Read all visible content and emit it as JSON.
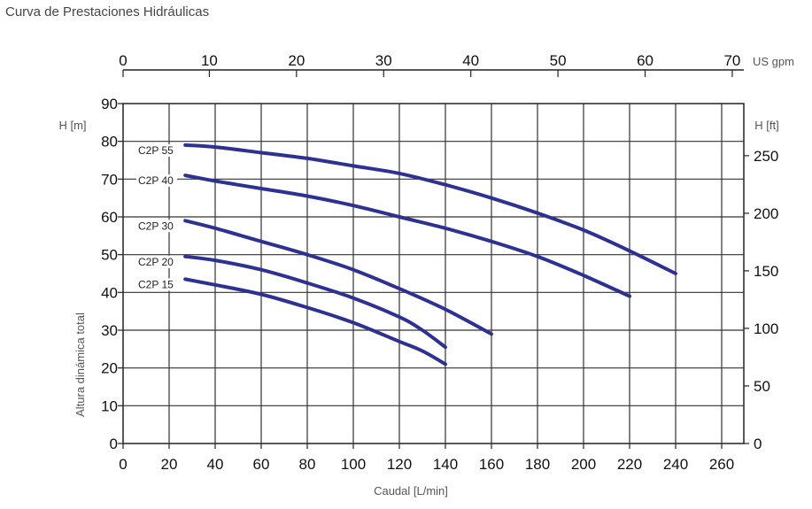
{
  "page_title": "Curva de Prestaciones Hidráulicas",
  "chart_data": {
    "type": "line",
    "xlabel": "Caudal [L/min]",
    "ylabel": "Altura dinámica total",
    "left_axis_unit": "H [m]",
    "right_axis_unit": "H [ft]",
    "top_axis_unit": "US gpm",
    "xlim": [
      0,
      265
    ],
    "ylim": [
      0,
      90
    ],
    "x_ticks": [
      0,
      20,
      40,
      60,
      80,
      100,
      120,
      140,
      160,
      180,
      200,
      220,
      240,
      260
    ],
    "y_ticks": [
      0,
      10,
      20,
      30,
      40,
      50,
      60,
      70,
      80,
      90
    ],
    "top_ticks": [
      0,
      10,
      20,
      30,
      40,
      50,
      60,
      70
    ],
    "right_ticks": [
      0,
      50,
      100,
      150,
      200,
      250
    ],
    "grid": true,
    "series": [
      {
        "name": "C2P 55",
        "x": [
          27,
          40,
          60,
          80,
          100,
          120,
          140,
          160,
          180,
          200,
          220,
          240
        ],
        "y": [
          79,
          78.5,
          77,
          75.5,
          73.5,
          71.5,
          68.5,
          65,
          61,
          56.5,
          51,
          45
        ]
      },
      {
        "name": "C2P 40",
        "x": [
          27,
          40,
          60,
          80,
          100,
          120,
          140,
          160,
          180,
          200,
          220
        ],
        "y": [
          71,
          69.5,
          67.5,
          65.5,
          63,
          60,
          57,
          53.5,
          49.5,
          44.5,
          39
        ]
      },
      {
        "name": "C2P 30",
        "x": [
          27,
          40,
          60,
          80,
          100,
          120,
          140,
          160
        ],
        "y": [
          59,
          57,
          53.5,
          50,
          46,
          41,
          35.5,
          29
        ]
      },
      {
        "name": "C2P 20",
        "x": [
          27,
          40,
          60,
          80,
          100,
          120,
          130,
          140
        ],
        "y": [
          49.5,
          48.5,
          46,
          42.5,
          38.5,
          33.5,
          30,
          25.5
        ]
      },
      {
        "name": "C2P 15",
        "x": [
          27,
          40,
          60,
          80,
          100,
          120,
          130,
          140
        ],
        "y": [
          43.5,
          42,
          39.5,
          36,
          32,
          27,
          24.5,
          21
        ]
      }
    ],
    "line_color": "#2e3192"
  }
}
